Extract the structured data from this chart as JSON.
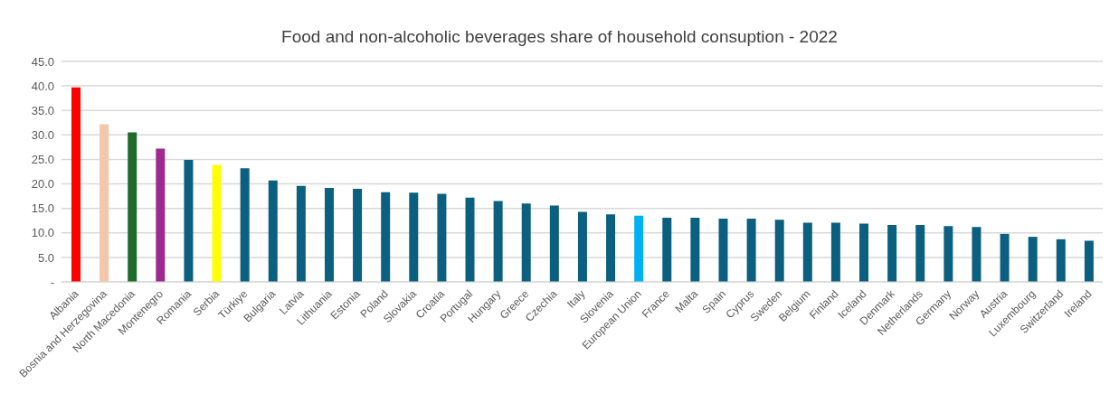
{
  "chart_data": {
    "type": "bar",
    "title": "Food and non-alcoholic beverages share of household consuption - 2022",
    "categories": [
      "Albania",
      "Bosnia and Herzegovina",
      "North Macedonia",
      "Montenegro",
      "Romania",
      "Serbia",
      "Türkiye",
      "Bulgaria",
      "Latvia",
      "Lithuania",
      "Estonia",
      "Poland",
      "Slovakia",
      "Croatia",
      "Portugal",
      "Hungary",
      "Greece",
      "Czechia",
      "Italy",
      "Slovenia",
      "European Union",
      "France",
      "Malta",
      "Spain",
      "Cyprus",
      "Sweden",
      "Belgium",
      "Finland",
      "Iceland",
      "Denmark",
      "Netherlands",
      "Germany",
      "Norway",
      "Austria",
      "Luxembourg",
      "Switzerland",
      "Ireland"
    ],
    "values": [
      39.7,
      32.2,
      30.5,
      27.2,
      24.9,
      23.9,
      23.2,
      20.7,
      19.6,
      19.2,
      19.0,
      18.3,
      18.2,
      18.0,
      17.2,
      16.5,
      16.0,
      15.6,
      14.3,
      13.8,
      13.5,
      13.1,
      13.1,
      12.9,
      12.9,
      12.7,
      12.1,
      12.1,
      11.9,
      11.6,
      11.6,
      11.4,
      11.2,
      9.8,
      9.2,
      8.7,
      8.4
    ],
    "colors": [
      "#ff0000",
      "#f4c7ab",
      "#1e6b2a",
      "#9e2a8f",
      "#0b5f7f",
      "#ffff00",
      "#0b5f7f",
      "#0b5f7f",
      "#0b5f7f",
      "#0b5f7f",
      "#0b5f7f",
      "#0b5f7f",
      "#0b5f7f",
      "#0b5f7f",
      "#0b5f7f",
      "#0b5f7f",
      "#0b5f7f",
      "#0b5f7f",
      "#0b5f7f",
      "#0b5f7f",
      "#00b0f0",
      "#0b5f7f",
      "#0b5f7f",
      "#0b5f7f",
      "#0b5f7f",
      "#0b5f7f",
      "#0b5f7f",
      "#0b5f7f",
      "#0b5f7f",
      "#0b5f7f",
      "#0b5f7f",
      "#0b5f7f",
      "#0b5f7f",
      "#0b5f7f",
      "#0b5f7f",
      "#0b5f7f",
      "#0b5f7f"
    ],
    "ylim": [
      0,
      45
    ],
    "yticks": [
      {
        "value": 0,
        "label": "-"
      },
      {
        "value": 5,
        "label": "5.0"
      },
      {
        "value": 10,
        "label": "10.0"
      },
      {
        "value": 15,
        "label": "15.0"
      },
      {
        "value": 20,
        "label": "20.0"
      },
      {
        "value": 25,
        "label": "25.0"
      },
      {
        "value": 30,
        "label": "30.0"
      },
      {
        "value": 35,
        "label": "35.0"
      },
      {
        "value": 40,
        "label": "40.0"
      },
      {
        "value": 45,
        "label": "45.0"
      }
    ],
    "grid": "y"
  }
}
